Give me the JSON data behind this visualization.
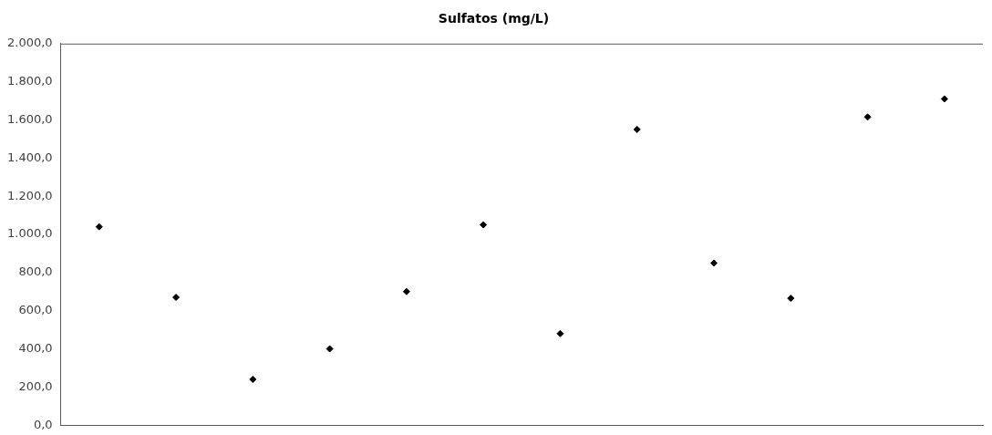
{
  "chart_data": {
    "type": "scatter",
    "title": "Sulfatos (mg/L)",
    "categories": [
      null,
      null,
      null,
      null,
      null,
      null,
      null,
      null,
      null,
      null,
      null,
      null
    ],
    "series": [
      {
        "color": "#000000",
        "values": [
          1040,
          670,
          240,
          400,
          700,
          1050,
          480,
          1550,
          850,
          665,
          1615,
          1710
        ]
      }
    ],
    "ylim": [
      0,
      2000
    ],
    "yticks": [
      {
        "value": 0,
        "label": "0,0"
      },
      {
        "value": 200,
        "label": "200,0"
      },
      {
        "value": 400,
        "label": "400,0"
      },
      {
        "value": 600,
        "label": "600,0"
      },
      {
        "value": 800,
        "label": "800,0"
      },
      {
        "value": 1000,
        "label": "1.000,0"
      },
      {
        "value": 1200,
        "label": "1.200,0"
      },
      {
        "value": 1400,
        "label": "1.400,0"
      },
      {
        "value": 1600,
        "label": "1.600,0"
      },
      {
        "value": 1800,
        "label": "1.800,0"
      },
      {
        "value": 2000,
        "label": "2.000,0"
      }
    ],
    "marker": "diamond",
    "grid": false,
    "legend": false,
    "tick_labels": "y"
  }
}
